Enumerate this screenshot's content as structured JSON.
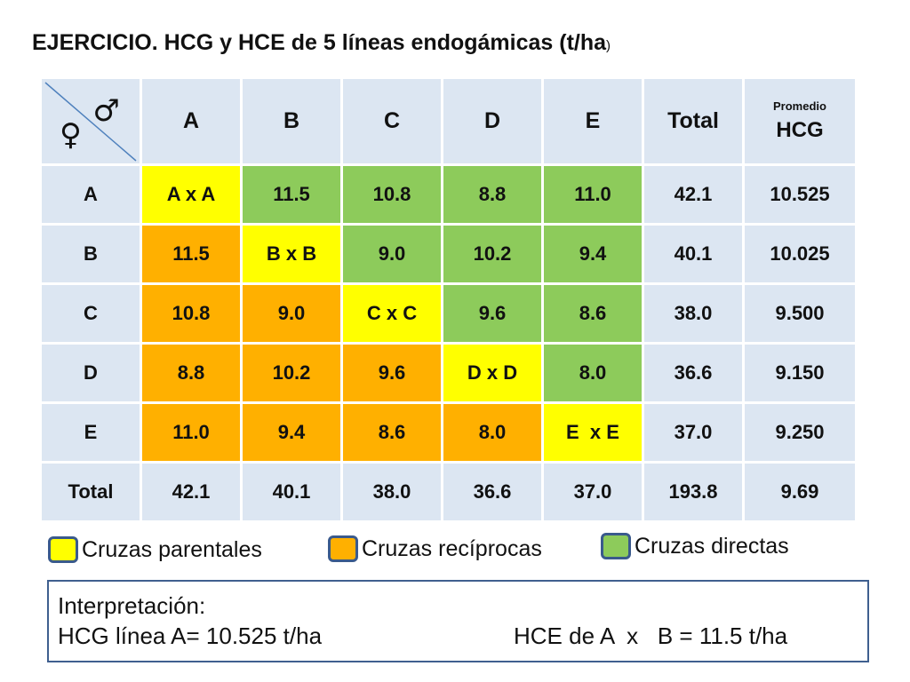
{
  "title": {
    "main": "EJERCICIO. HCG y HCE de 5 líneas endogámicas (t/ha",
    "paren": ")"
  },
  "table": {
    "corner": {
      "male_symbol": "♂",
      "female_symbol": "♀"
    },
    "headers": [
      "A",
      "B",
      "C",
      "D",
      "E",
      "Total"
    ],
    "promedio": {
      "small": "Promedio",
      "big": "HCG"
    },
    "rows": [
      {
        "label": "A",
        "cells": [
          "A x A",
          "11.5",
          "10.8",
          "8.8",
          "11.0"
        ],
        "total": "42.1",
        "promedio": "10.525"
      },
      {
        "label": "B",
        "cells": [
          "11.5",
          "B x B",
          "9.0",
          "10.2",
          "9.4"
        ],
        "total": "40.1",
        "promedio": "10.025"
      },
      {
        "label": "C",
        "cells": [
          "10.8",
          "9.0",
          "C x C",
          "9.6",
          "8.6"
        ],
        "total": "38.0",
        "promedio": "9.500"
      },
      {
        "label": "D",
        "cells": [
          "8.8",
          "10.2",
          "9.6",
          "D x D",
          "8.0"
        ],
        "total": "36.6",
        "promedio": "9.150"
      },
      {
        "label": "E",
        "cells": [
          "11.0",
          "9.4",
          "8.6",
          "8.0",
          "E  x E"
        ],
        "total": "37.0",
        "promedio": "9.250"
      }
    ],
    "total_row": {
      "label": "Total",
      "cells": [
        "42.1",
        "40.1",
        "38.0",
        "36.6",
        "37.0"
      ],
      "total": "193.8",
      "promedio": "9.69"
    }
  },
  "legend": [
    {
      "label": "Cruzas parentales",
      "color": "#ffff00"
    },
    {
      "label": "Cruzas recíprocas",
      "color": "#ffb000"
    },
    {
      "label": "Cruzas directas",
      "color": "#8dcb5b"
    }
  ],
  "interpretation": {
    "heading": "Interpretación:",
    "hcg": "HCG línea A= 10.525 t/ha",
    "hce": "HCE de A  x   B = 11.5 t/ha"
  },
  "colors": {
    "cell_bg": "#dce6f2",
    "parental": "#ffff00",
    "reciprocal": "#ffb000",
    "direct": "#8dcb5b",
    "border": "#3f5f8f"
  }
}
